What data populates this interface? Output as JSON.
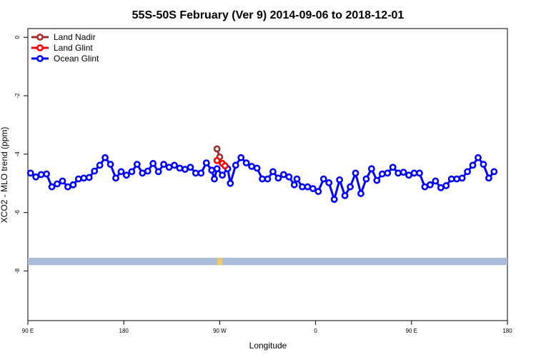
{
  "chart_data": {
    "type": "line",
    "title": "55S-50S February (Ver 9)   2014-09-06 to 2018-12-01",
    "xlabel": "Longitude",
    "ylabel": "XCO2 - MLO trend (ppm)",
    "xlim": [
      -180,
      180
    ],
    "ylim": [
      -9.7,
      0.3
    ],
    "x_ticks": [
      {
        "value": -180,
        "label": "90 E"
      },
      {
        "value": -108,
        "label": "180"
      },
      {
        "value": -36,
        "label": "90 W"
      },
      {
        "value": 36,
        "label": "0"
      },
      {
        "value": 108,
        "label": "90 E"
      },
      {
        "value": 180,
        "label": "180"
      }
    ],
    "y_ticks": [
      {
        "value": 0,
        "label": "0"
      },
      {
        "value": -2,
        "label": "-2"
      },
      {
        "value": -4,
        "label": "-4"
      },
      {
        "value": -6,
        "label": "-6"
      },
      {
        "value": -8,
        "label": "-8"
      }
    ],
    "legend_position": "top-left",
    "grid": false,
    "land_band": {
      "y_range": [
        -7.8,
        -7.55
      ],
      "color": "#a9bcd9",
      "highlight_color": "#f2c66a",
      "highlight_x": [
        -38,
        -34
      ]
    },
    "series": [
      {
        "name": "Land Nadir",
        "color": "#a52a2a",
        "points": [
          [
            -38,
            -3.82
          ],
          [
            -36,
            -4.1
          ]
        ]
      },
      {
        "name": "Land Glint",
        "color": "#ff0000",
        "points": [
          [
            -38,
            -4.22
          ],
          [
            -34,
            -4.32
          ],
          [
            -32,
            -4.4
          ]
        ]
      },
      {
        "name": "Ocean Glint",
        "color": "#0000ff",
        "points": [
          [
            -178,
            -4.65
          ],
          [
            -174,
            -4.78
          ],
          [
            -170,
            -4.7
          ],
          [
            -166,
            -4.68
          ],
          [
            -162,
            -5.12
          ],
          [
            -158,
            -5.02
          ],
          [
            -154,
            -4.92
          ],
          [
            -150,
            -5.12
          ],
          [
            -146,
            -5.05
          ],
          [
            -142,
            -4.85
          ],
          [
            -138,
            -4.82
          ],
          [
            -134,
            -4.8
          ],
          [
            -130,
            -4.58
          ],
          [
            -126,
            -4.38
          ],
          [
            -122,
            -4.12
          ],
          [
            -118,
            -4.35
          ],
          [
            -114,
            -4.82
          ],
          [
            -110,
            -4.6
          ],
          [
            -106,
            -4.72
          ],
          [
            -102,
            -4.6
          ],
          [
            -98,
            -4.35
          ],
          [
            -94,
            -4.65
          ],
          [
            -90,
            -4.58
          ],
          [
            -86,
            -4.32
          ],
          [
            -82,
            -4.6
          ],
          [
            -78,
            -4.35
          ],
          [
            -74,
            -4.45
          ],
          [
            -70,
            -4.38
          ],
          [
            -66,
            -4.48
          ],
          [
            -62,
            -4.52
          ],
          [
            -58,
            -4.45
          ],
          [
            -54,
            -4.65
          ],
          [
            -50,
            -4.65
          ],
          [
            -46,
            -4.3
          ],
          [
            -42,
            -4.55
          ],
          [
            -40,
            -4.85
          ],
          [
            -38,
            -4.5
          ],
          [
            -34,
            -4.72
          ],
          [
            -30,
            -4.5
          ],
          [
            -28,
            -5.0
          ],
          [
            -24,
            -4.38
          ],
          [
            -20,
            -4.12
          ],
          [
            -16,
            -4.3
          ],
          [
            -12,
            -4.42
          ],
          [
            -8,
            -4.48
          ],
          [
            -4,
            -4.85
          ],
          [
            0,
            -4.85
          ],
          [
            4,
            -4.6
          ],
          [
            8,
            -4.82
          ],
          [
            12,
            -4.7
          ],
          [
            16,
            -4.78
          ],
          [
            20,
            -5.05
          ],
          [
            22,
            -4.85
          ],
          [
            26,
            -5.12
          ],
          [
            30,
            -5.12
          ],
          [
            34,
            -5.18
          ],
          [
            38,
            -5.28
          ],
          [
            42,
            -4.85
          ],
          [
            46,
            -4.98
          ],
          [
            50,
            -5.55
          ],
          [
            54,
            -4.88
          ],
          [
            58,
            -5.42
          ],
          [
            62,
            -5.12
          ],
          [
            66,
            -4.65
          ],
          [
            70,
            -5.35
          ],
          [
            74,
            -4.85
          ],
          [
            78,
            -4.5
          ],
          [
            82,
            -4.9
          ],
          [
            86,
            -4.68
          ],
          [
            90,
            -4.65
          ],
          [
            94,
            -4.45
          ],
          [
            98,
            -4.65
          ],
          [
            102,
            -4.62
          ],
          [
            106,
            -4.72
          ],
          [
            110,
            -4.65
          ],
          [
            114,
            -4.65
          ],
          [
            118,
            -5.12
          ],
          [
            122,
            -5.05
          ],
          [
            126,
            -4.92
          ],
          [
            130,
            -5.15
          ],
          [
            134,
            -5.08
          ],
          [
            138,
            -4.85
          ],
          [
            142,
            -4.85
          ],
          [
            146,
            -4.82
          ],
          [
            150,
            -4.6
          ],
          [
            154,
            -4.38
          ],
          [
            158,
            -4.12
          ],
          [
            162,
            -4.35
          ],
          [
            166,
            -4.82
          ],
          [
            170,
            -4.6
          ]
        ]
      }
    ]
  }
}
